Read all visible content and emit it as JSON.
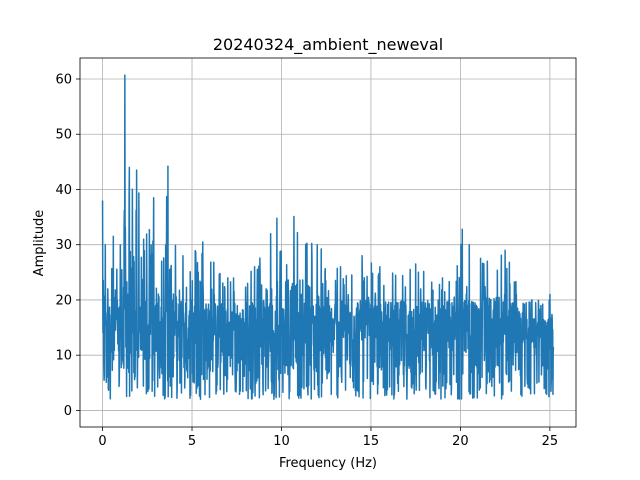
{
  "chart_data": {
    "type": "line",
    "title": "20240324_ambient_neweval",
    "xlabel": "Frequency (Hz)",
    "ylabel": "Amplitude",
    "xlim": [
      -1.26,
      26.46
    ],
    "ylim": [
      -3.0,
      63.8
    ],
    "xticks": [
      0,
      5,
      10,
      15,
      20,
      25
    ],
    "yticks": [
      0,
      10,
      20,
      30,
      40,
      50,
      60
    ],
    "grid": true,
    "legend": "none",
    "series_color": "#1f77b4",
    "x_range": [
      0,
      25.2
    ],
    "series": [
      {
        "values_note": "",
        "peaks": [
          {
            "x": 0.0,
            "y": 38.0
          },
          {
            "x": 0.15,
            "y": 30.0
          },
          {
            "x": 0.3,
            "y": 22.0
          },
          {
            "x": 0.6,
            "y": 31.5
          },
          {
            "x": 1.0,
            "y": 30.0
          },
          {
            "x": 1.25,
            "y": 60.7
          },
          {
            "x": 1.5,
            "y": 44.0
          },
          {
            "x": 1.9,
            "y": 43.5
          },
          {
            "x": 2.3,
            "y": 31.0
          },
          {
            "x": 2.85,
            "y": 38.5
          },
          {
            "x": 3.3,
            "y": 27.0
          },
          {
            "x": 3.65,
            "y": 44.2
          },
          {
            "x": 4.5,
            "y": 28.0
          },
          {
            "x": 5.6,
            "y": 30.5
          },
          {
            "x": 7.0,
            "y": 24.0
          },
          {
            "x": 8.5,
            "y": 26.0
          },
          {
            "x": 9.4,
            "y": 32.0
          },
          {
            "x": 9.75,
            "y": 34.8
          },
          {
            "x": 10.7,
            "y": 35.1
          },
          {
            "x": 12.0,
            "y": 30.0
          },
          {
            "x": 13.3,
            "y": 26.0
          },
          {
            "x": 14.5,
            "y": 28.0
          },
          {
            "x": 15.5,
            "y": 26.0
          },
          {
            "x": 17.5,
            "y": 26.5
          },
          {
            "x": 19.0,
            "y": 24.0
          },
          {
            "x": 20.1,
            "y": 32.8
          },
          {
            "x": 20.5,
            "y": 30.0
          },
          {
            "x": 21.5,
            "y": 27.0
          },
          {
            "x": 22.5,
            "y": 29.0
          },
          {
            "x": 24.0,
            "y": 20.0
          },
          {
            "x": 25.0,
            "y": 21.0
          }
        ]
      }
    ]
  }
}
